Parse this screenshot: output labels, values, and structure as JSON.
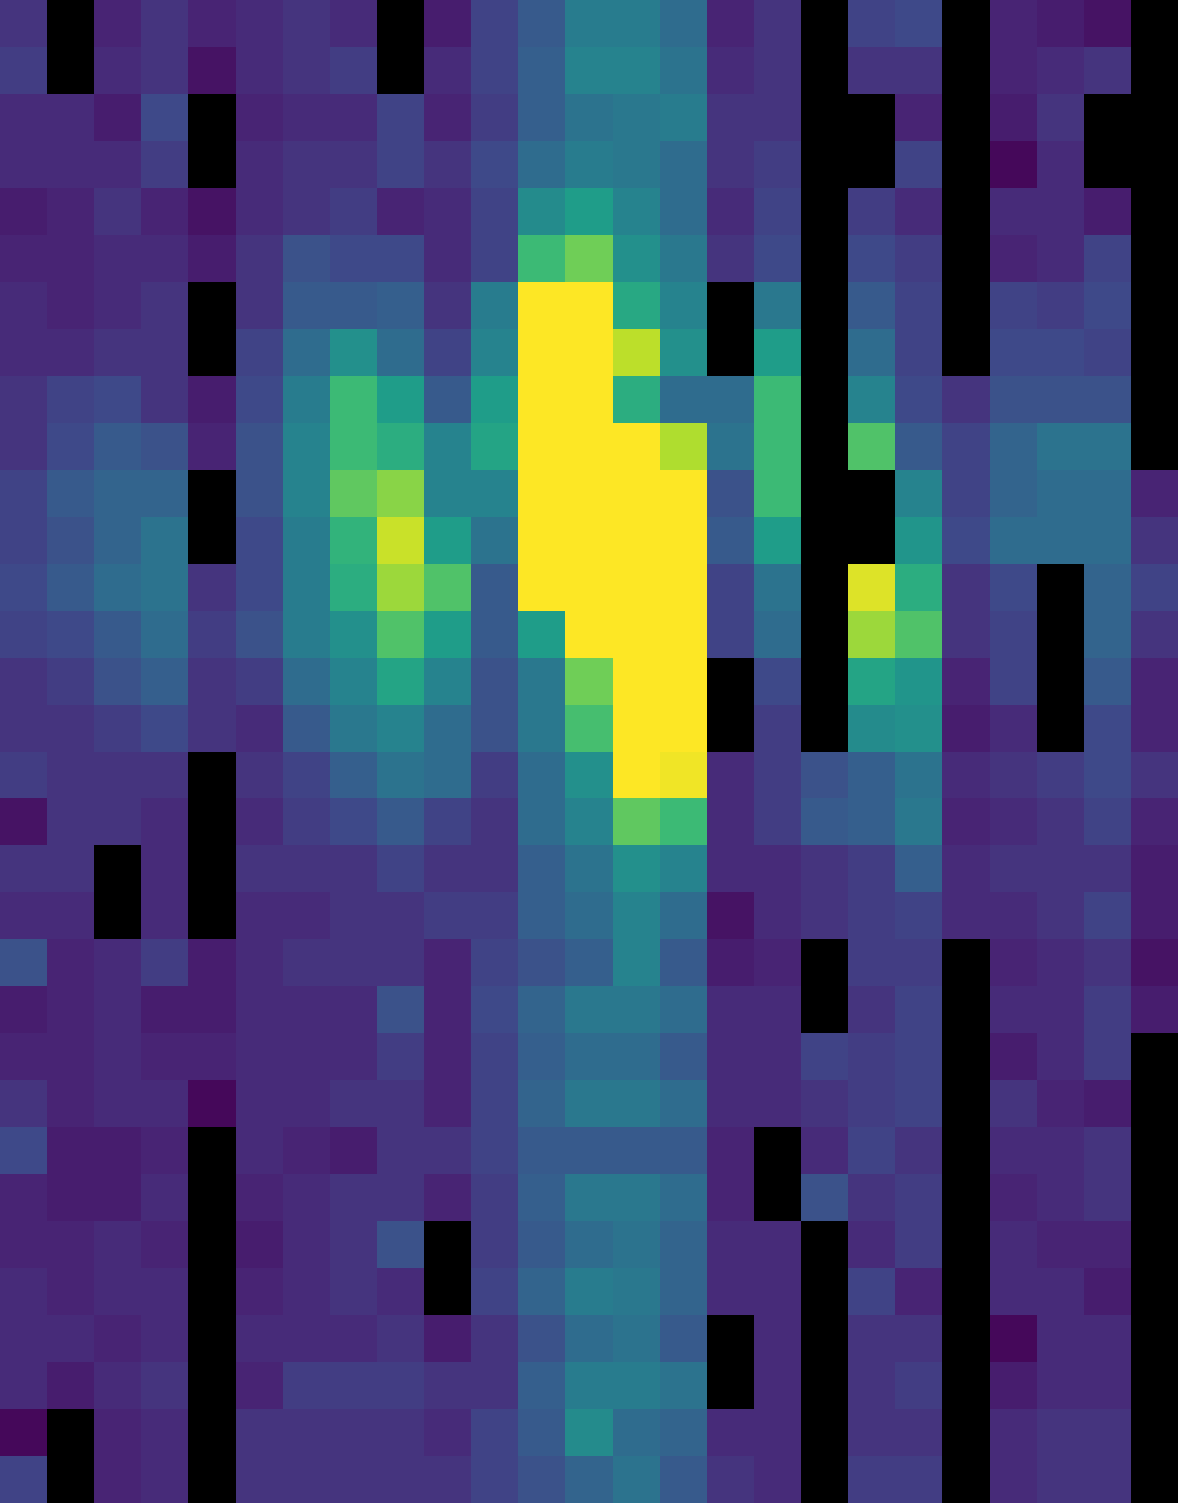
{
  "chart_data": {
    "type": "heatmap",
    "colormap": "viridis",
    "clim": [
      0,
      1
    ],
    "mask_color": "#000000",
    "values": [
      [
        0.15,
        null,
        0.1,
        0.15,
        0.1,
        0.12,
        0.15,
        0.12,
        null,
        0.08,
        0.2,
        0.28,
        0.42,
        0.42,
        0.35,
        0.1,
        0.15,
        null,
        0.2,
        0.22,
        null,
        0.1,
        0.08,
        0.05,
        null
      ],
      [
        0.18,
        null,
        0.12,
        0.15,
        0.05,
        0.12,
        0.15,
        0.18,
        null,
        0.12,
        0.2,
        0.3,
        0.45,
        0.45,
        0.38,
        0.12,
        0.15,
        null,
        0.15,
        0.15,
        null,
        0.1,
        0.12,
        0.15,
        null
      ],
      [
        0.12,
        0.12,
        0.08,
        0.22,
        null,
        0.1,
        0.12,
        0.12,
        0.2,
        0.1,
        0.18,
        0.3,
        0.38,
        0.4,
        0.42,
        0.15,
        0.15,
        null,
        null,
        0.1,
        null,
        0.08,
        0.15,
        null,
        null
      ],
      [
        0.12,
        0.12,
        0.12,
        0.18,
        null,
        0.12,
        0.15,
        0.15,
        0.2,
        0.15,
        0.22,
        0.35,
        0.42,
        0.4,
        0.35,
        0.15,
        0.18,
        null,
        null,
        0.2,
        null,
        0.02,
        0.12,
        null,
        null
      ],
      [
        0.08,
        0.1,
        0.15,
        0.1,
        0.05,
        0.12,
        0.15,
        0.18,
        0.1,
        0.12,
        0.2,
        0.48,
        0.55,
        0.45,
        0.35,
        0.12,
        0.2,
        null,
        0.18,
        0.12,
        null,
        0.12,
        0.12,
        0.08,
        null
      ],
      [
        0.1,
        0.1,
        0.12,
        0.12,
        0.08,
        0.15,
        0.25,
        0.22,
        0.22,
        0.12,
        0.2,
        0.68,
        0.78,
        0.5,
        0.4,
        0.15,
        0.22,
        null,
        0.22,
        0.18,
        null,
        0.1,
        0.12,
        0.2,
        null
      ],
      [
        0.12,
        0.1,
        0.12,
        0.15,
        null,
        0.15,
        0.28,
        0.28,
        0.3,
        0.15,
        0.42,
        1,
        1,
        0.6,
        0.45,
        null,
        0.4,
        null,
        0.28,
        0.2,
        null,
        0.2,
        0.18,
        0.22,
        null
      ],
      [
        0.12,
        0.12,
        0.15,
        0.15,
        null,
        0.2,
        0.35,
        0.5,
        0.35,
        0.2,
        0.45,
        1,
        1,
        0.9,
        0.5,
        null,
        0.55,
        null,
        0.35,
        0.2,
        null,
        0.22,
        0.22,
        0.2,
        null
      ],
      [
        0.15,
        0.2,
        0.22,
        0.15,
        0.08,
        0.22,
        0.42,
        0.68,
        0.55,
        0.28,
        0.55,
        1,
        1,
        0.62,
        0.35,
        0.35,
        0.68,
        null,
        0.45,
        0.22,
        0.15,
        0.25,
        0.25,
        0.25,
        null
      ],
      [
        0.15,
        0.22,
        0.28,
        0.25,
        0.1,
        0.25,
        0.45,
        0.68,
        0.62,
        0.45,
        0.58,
        1,
        1,
        1,
        0.88,
        0.38,
        0.68,
        null,
        0.72,
        0.28,
        0.2,
        0.32,
        0.38,
        0.38,
        null
      ],
      [
        0.2,
        0.28,
        0.32,
        0.32,
        null,
        0.25,
        0.45,
        0.75,
        0.82,
        0.45,
        0.45,
        1,
        1,
        1,
        1,
        0.25,
        0.68,
        null,
        null,
        0.45,
        0.2,
        0.32,
        0.35,
        0.35,
        0.1
      ],
      [
        0.2,
        0.25,
        0.32,
        0.38,
        null,
        0.22,
        0.42,
        0.65,
        0.92,
        0.55,
        0.38,
        1,
        1,
        1,
        1,
        0.28,
        0.55,
        null,
        null,
        0.52,
        0.22,
        0.35,
        0.35,
        0.35,
        0.15
      ],
      [
        0.22,
        0.28,
        0.35,
        0.38,
        0.15,
        0.22,
        0.42,
        0.62,
        0.85,
        0.72,
        0.28,
        1,
        1,
        1,
        1,
        0.2,
        0.38,
        null,
        0.95,
        0.62,
        0.15,
        0.22,
        null,
        0.32,
        0.2
      ],
      [
        0.2,
        0.22,
        0.28,
        0.35,
        0.18,
        0.25,
        0.42,
        0.5,
        0.72,
        0.55,
        0.28,
        0.55,
        1,
        1,
        1,
        0.2,
        0.35,
        null,
        0.85,
        0.72,
        0.15,
        0.2,
        null,
        0.32,
        0.15
      ],
      [
        0.15,
        0.18,
        0.25,
        0.3,
        0.15,
        0.18,
        0.35,
        0.45,
        0.58,
        0.45,
        0.25,
        0.4,
        0.78,
        1,
        1,
        null,
        0.22,
        null,
        0.58,
        0.52,
        0.1,
        0.2,
        null,
        0.28,
        0.1
      ],
      [
        0.15,
        0.15,
        0.18,
        0.22,
        0.15,
        0.12,
        0.28,
        0.4,
        0.45,
        0.35,
        0.25,
        0.4,
        0.7,
        1,
        1,
        null,
        0.18,
        null,
        0.48,
        0.5,
        0.08,
        0.12,
        null,
        0.22,
        0.1
      ],
      [
        0.18,
        0.15,
        0.15,
        0.15,
        null,
        0.15,
        0.2,
        0.3,
        0.38,
        0.35,
        0.18,
        0.35,
        0.5,
        1,
        0.98,
        0.12,
        0.18,
        0.25,
        0.3,
        0.38,
        0.12,
        0.15,
        0.18,
        0.22,
        0.15
      ],
      [
        0.05,
        0.15,
        0.15,
        0.12,
        null,
        0.12,
        0.18,
        0.22,
        0.28,
        0.2,
        0.15,
        0.35,
        0.45,
        0.75,
        0.68,
        0.12,
        0.18,
        0.28,
        0.3,
        0.4,
        0.1,
        0.12,
        0.15,
        0.2,
        0.1
      ],
      [
        0.15,
        0.15,
        null,
        0.12,
        null,
        0.15,
        0.15,
        0.15,
        0.2,
        0.15,
        0.15,
        0.3,
        0.38,
        0.5,
        0.45,
        0.12,
        0.12,
        0.15,
        0.18,
        0.3,
        0.12,
        0.15,
        0.15,
        0.15,
        0.08
      ],
      [
        0.12,
        0.12,
        null,
        0.12,
        null,
        0.12,
        0.12,
        0.15,
        0.15,
        0.18,
        0.18,
        0.3,
        0.35,
        0.45,
        0.35,
        0.05,
        0.12,
        0.15,
        0.18,
        0.2,
        0.12,
        0.12,
        0.15,
        0.2,
        0.08
      ],
      [
        0.25,
        0.1,
        0.12,
        0.18,
        0.08,
        0.12,
        0.15,
        0.15,
        0.15,
        0.1,
        0.2,
        0.25,
        0.3,
        0.45,
        0.28,
        0.08,
        0.1,
        null,
        0.18,
        0.18,
        null,
        0.1,
        0.12,
        0.15,
        0.05
      ],
      [
        0.08,
        0.1,
        0.12,
        0.08,
        0.08,
        0.12,
        0.12,
        0.12,
        0.25,
        0.1,
        0.22,
        0.32,
        0.4,
        0.4,
        0.35,
        0.12,
        0.12,
        null,
        0.15,
        0.2,
        null,
        0.12,
        0.12,
        0.18,
        0.08
      ],
      [
        0.1,
        0.1,
        0.12,
        0.1,
        0.1,
        0.12,
        0.12,
        0.12,
        0.18,
        0.1,
        0.2,
        0.3,
        0.35,
        0.35,
        0.28,
        0.12,
        0.12,
        0.2,
        0.18,
        0.2,
        null,
        0.08,
        0.12,
        0.18,
        null
      ],
      [
        0.15,
        0.1,
        0.12,
        0.12,
        0.02,
        0.12,
        0.12,
        0.15,
        0.15,
        0.1,
        0.2,
        0.32,
        0.4,
        0.4,
        0.35,
        0.12,
        0.12,
        0.15,
        0.18,
        0.2,
        null,
        0.15,
        0.1,
        0.08,
        null
      ],
      [
        0.22,
        0.08,
        0.08,
        0.1,
        null,
        0.12,
        0.1,
        0.08,
        0.15,
        0.15,
        0.2,
        0.28,
        0.28,
        0.28,
        0.28,
        0.1,
        null,
        0.12,
        0.2,
        0.15,
        null,
        0.12,
        0.12,
        0.15,
        null
      ],
      [
        0.1,
        0.08,
        0.08,
        0.12,
        null,
        0.1,
        0.12,
        0.15,
        0.15,
        0.1,
        0.18,
        0.3,
        0.4,
        0.4,
        0.35,
        0.1,
        null,
        0.25,
        0.15,
        0.18,
        null,
        0.1,
        0.12,
        0.15,
        null
      ],
      [
        0.1,
        0.1,
        0.12,
        0.1,
        null,
        0.08,
        0.12,
        0.15,
        0.25,
        null,
        0.18,
        0.28,
        0.35,
        0.38,
        0.32,
        0.12,
        0.12,
        null,
        0.12,
        0.18,
        null,
        0.12,
        0.1,
        0.1,
        null
      ],
      [
        0.12,
        0.1,
        0.12,
        0.12,
        null,
        0.1,
        0.12,
        0.15,
        0.12,
        null,
        0.2,
        0.32,
        0.42,
        0.4,
        0.32,
        0.12,
        0.12,
        null,
        0.2,
        0.1,
        null,
        0.12,
        0.12,
        0.08,
        null
      ],
      [
        0.12,
        0.12,
        0.1,
        0.12,
        null,
        0.12,
        0.12,
        0.12,
        0.15,
        0.08,
        0.15,
        0.25,
        0.35,
        0.38,
        0.28,
        null,
        0.12,
        null,
        0.15,
        0.15,
        null,
        0.02,
        0.12,
        0.12,
        null
      ],
      [
        0.12,
        0.08,
        0.12,
        0.15,
        null,
        0.1,
        0.18,
        0.18,
        0.18,
        0.15,
        0.15,
        0.3,
        0.42,
        0.42,
        0.38,
        null,
        0.12,
        null,
        0.15,
        0.18,
        null,
        0.08,
        0.12,
        0.12,
        null
      ],
      [
        0.02,
        null,
        0.1,
        0.12,
        null,
        0.15,
        0.15,
        0.15,
        0.15,
        0.12,
        0.2,
        0.28,
        0.48,
        0.35,
        0.32,
        0.12,
        0.12,
        null,
        0.15,
        0.15,
        null,
        0.12,
        0.15,
        0.15,
        null
      ],
      [
        0.2,
        null,
        0.1,
        0.12,
        null,
        0.15,
        0.15,
        0.15,
        0.15,
        0.15,
        0.2,
        0.25,
        0.32,
        0.38,
        0.28,
        0.15,
        0.12,
        null,
        0.18,
        0.18,
        null,
        0.12,
        0.15,
        0.15,
        null
      ]
    ]
  }
}
